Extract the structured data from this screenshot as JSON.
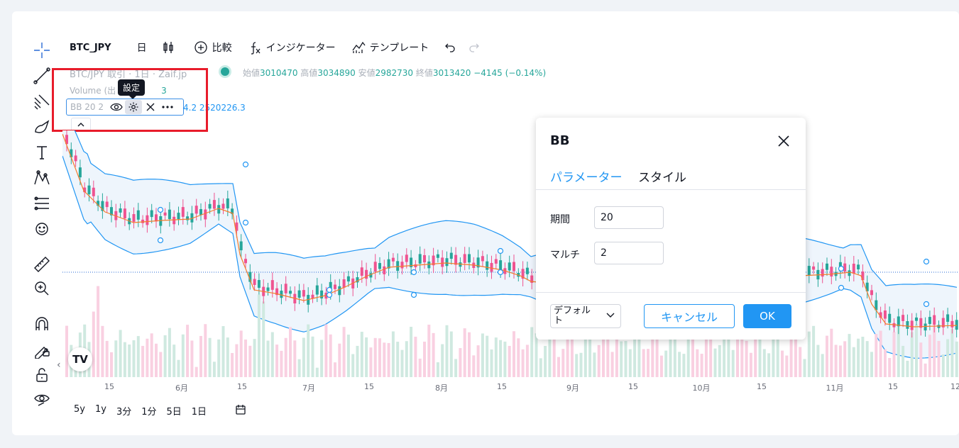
{
  "top_bar": {
    "symbol": "BTC_JPY",
    "interval": "日",
    "compare": "比較",
    "indicators": "インジケーター",
    "templates": "テンプレート"
  },
  "legend": {
    "title": "BTC/JPY 取引 · 1日 · Zaif.jp",
    "ohlc": {
      "open_label": "始値",
      "open": "3010470",
      "high_label": "高値",
      "high": "3034890",
      "low_label": "安値",
      "low": "2982730",
      "close_label": "終値",
      "close": "3013420",
      "change": "−4145 (−0.14%)"
    },
    "volume_label": "Volume (出",
    "volume_value": "3",
    "bb_label": "BB 20 2",
    "bb_values": "4.2  2520226.3",
    "tooltip": "設定"
  },
  "x_axis": {
    "labels": [
      "15",
      "6月",
      "15",
      "7月",
      "15",
      "8月",
      "15",
      "9月",
      "15",
      "10月",
      "15",
      "11月",
      "15",
      "12"
    ]
  },
  "periods": [
    "5y",
    "1y",
    "3分",
    "1分",
    "5日",
    "1日"
  ],
  "dialog": {
    "title": "BB",
    "tabs": [
      "パラメーター",
      "スタイル"
    ],
    "period_label": "期間",
    "period_value": "20",
    "mult_label": "マルチ",
    "mult_value": "2",
    "default_label": "デフォルト",
    "cancel": "キャンセル",
    "ok": "OK"
  },
  "colors": {
    "up": "#26a69a",
    "down": "#ef5390",
    "band": "#2196f3",
    "basis": "#f57c2b",
    "accent": "#2196f3",
    "highlight": "#e81c2b"
  },
  "chart_data": {
    "type": "candlestick",
    "indicator": "Bollinger Bands",
    "params": {
      "length": 20,
      "mult": 2
    },
    "last": {
      "open": 3010470,
      "high": 3034890,
      "low": 2982730,
      "close": 3013420,
      "change": -4145,
      "change_pct": -0.14
    }
  }
}
